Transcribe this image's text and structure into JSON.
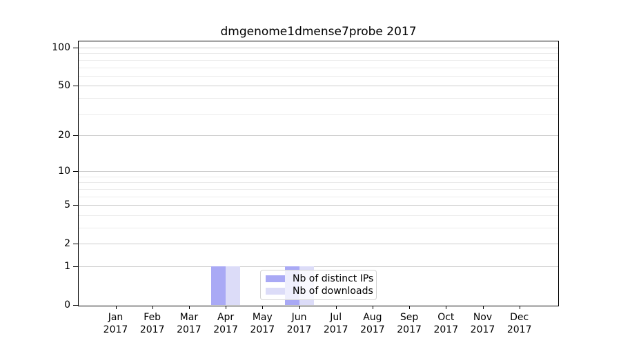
{
  "chart_data": {
    "type": "bar",
    "title": "dmgenome1dmense7probe 2017",
    "categories": [
      "Jan",
      "Feb",
      "Mar",
      "Apr",
      "May",
      "Jun",
      "Jul",
      "Aug",
      "Sep",
      "Oct",
      "Nov",
      "Dec"
    ],
    "category_year": "2017",
    "series": [
      {
        "name": "Nb of distinct IPs",
        "color": "#a9a9f5",
        "values": [
          0,
          0,
          0,
          1,
          0,
          1,
          0,
          0,
          0,
          0,
          0,
          0
        ]
      },
      {
        "name": "Nb of downloads",
        "color": "#dcdcf8",
        "values": [
          0,
          0,
          0,
          1,
          0,
          1,
          0,
          0,
          0,
          0,
          0,
          0
        ]
      }
    ],
    "xlabel": "",
    "ylabel": "",
    "yscale": "log1p",
    "ylim": [
      0,
      112
    ],
    "yticks": [
      0,
      1,
      2,
      5,
      10,
      20,
      50,
      100
    ],
    "minor_gridlines": [
      3,
      4,
      6,
      7,
      8,
      9,
      30,
      40,
      60,
      70,
      80,
      90
    ],
    "grid": true,
    "legend_position": "lower center",
    "colors": {
      "grid_major": "#cccccc",
      "grid_minor": "#ebebeb",
      "axis": "#000000",
      "background": "#ffffff"
    }
  }
}
